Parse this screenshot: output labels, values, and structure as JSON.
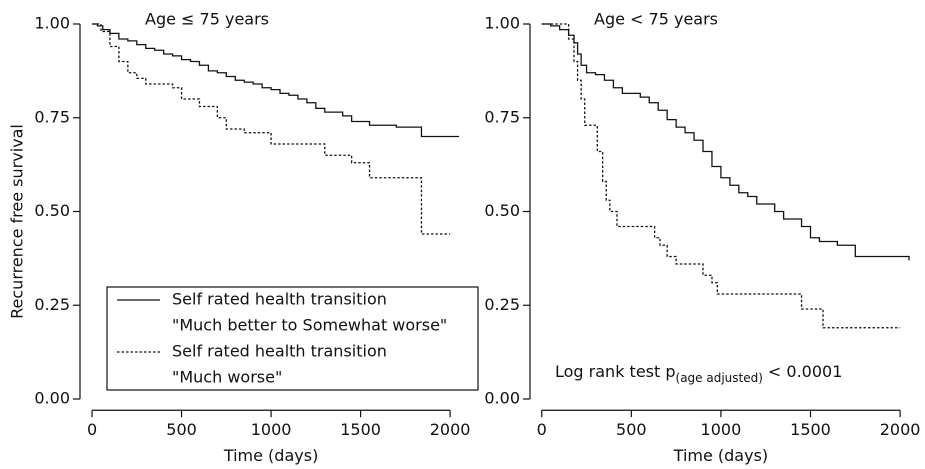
{
  "chart_data": [
    {
      "type": "step",
      "title": "Age ≤ 75 years",
      "xlabel": "Time (days)",
      "ylabel": "Recurrence free survival",
      "xlim": [
        -60,
        2100
      ],
      "ylim": [
        -0.03,
        1.03
      ],
      "xticks": [
        0,
        500,
        1000,
        1500,
        2000
      ],
      "yticks": [
        {
          "value": 0,
          "label": "0.00"
        },
        {
          "value": 0.25,
          "label": "0.25"
        },
        {
          "value": 0.5,
          "label": "0.50"
        },
        {
          "value": 0.75,
          "label": "0.75"
        },
        {
          "value": 1,
          "label": "1.00"
        }
      ],
      "legend": "bottom-left",
      "series": [
        {
          "name": [
            "Self rated health transition",
            "\"Much better to Somewhat worse\""
          ],
          "color": "#111111",
          "linestyle": "solid",
          "x": [
            0,
            30,
            60,
            100,
            150,
            200,
            250,
            300,
            350,
            400,
            450,
            500,
            550,
            600,
            650,
            700,
            750,
            800,
            850,
            900,
            950,
            1000,
            1050,
            1100,
            1150,
            1200,
            1250,
            1300,
            1400,
            1450,
            1550,
            1700,
            1840,
            2050
          ],
          "values": [
            1.0,
            0.995,
            0.985,
            0.975,
            0.96,
            0.955,
            0.945,
            0.935,
            0.93,
            0.92,
            0.915,
            0.905,
            0.9,
            0.89,
            0.875,
            0.87,
            0.86,
            0.85,
            0.845,
            0.84,
            0.83,
            0.825,
            0.815,
            0.81,
            0.8,
            0.79,
            0.775,
            0.765,
            0.755,
            0.74,
            0.73,
            0.725,
            0.7,
            0.7
          ]
        },
        {
          "name": [
            "Self rated health transition",
            "\"Much worse\""
          ],
          "color": "#111111",
          "linestyle": "dotted",
          "x": [
            0,
            50,
            100,
            150,
            200,
            250,
            300,
            450,
            500,
            600,
            700,
            750,
            850,
            1000,
            1300,
            1450,
            1550,
            1840,
            2000
          ],
          "values": [
            1.0,
            0.98,
            0.94,
            0.9,
            0.87,
            0.855,
            0.84,
            0.83,
            0.8,
            0.78,
            0.75,
            0.72,
            0.71,
            0.68,
            0.65,
            0.63,
            0.59,
            0.44,
            0.44
          ]
        }
      ]
    },
    {
      "type": "step",
      "title": "Age < 75 years",
      "xlabel": "Time (days)",
      "xlim": [
        -60,
        2100
      ],
      "ylim": [
        -0.03,
        1.03
      ],
      "xticks": [
        0,
        500,
        1000,
        1500,
        2000
      ],
      "yticks": [
        {
          "value": 0,
          "label": "0.00"
        },
        {
          "value": 0.25,
          "label": "0.25"
        },
        {
          "value": 0.5,
          "label": "0.50"
        },
        {
          "value": 0.75,
          "label": "0.75"
        },
        {
          "value": 1,
          "label": "1.00"
        }
      ],
      "annotation": {
        "text": "Log rank test p",
        "subscript": "(age adjusted)",
        "tail": "< 0.0001"
      },
      "series": [
        {
          "color": "#111111",
          "linestyle": "solid",
          "x": [
            0,
            50,
            100,
            150,
            180,
            200,
            220,
            250,
            300,
            350,
            400,
            450,
            550,
            600,
            650,
            700,
            750,
            800,
            850,
            900,
            950,
            1000,
            1050,
            1100,
            1150,
            1200,
            1300,
            1350,
            1450,
            1500,
            1550,
            1650,
            1750,
            2050
          ],
          "values": [
            1.0,
            0.995,
            0.985,
            0.97,
            0.95,
            0.92,
            0.89,
            0.87,
            0.865,
            0.85,
            0.83,
            0.815,
            0.805,
            0.79,
            0.77,
            0.745,
            0.725,
            0.71,
            0.69,
            0.66,
            0.62,
            0.59,
            0.57,
            0.55,
            0.54,
            0.52,
            0.5,
            0.48,
            0.46,
            0.43,
            0.42,
            0.41,
            0.38,
            0.37
          ]
        },
        {
          "color": "#111111",
          "linestyle": "dotted",
          "x": [
            0,
            150,
            180,
            200,
            220,
            240,
            310,
            340,
            360,
            380,
            420,
            630,
            660,
            700,
            750,
            900,
            950,
            980,
            1450,
            1570,
            2000
          ],
          "values": [
            1.0,
            0.96,
            0.9,
            0.85,
            0.8,
            0.73,
            0.66,
            0.58,
            0.53,
            0.5,
            0.46,
            0.43,
            0.41,
            0.38,
            0.36,
            0.33,
            0.31,
            0.28,
            0.24,
            0.19,
            0.19
          ]
        }
      ]
    }
  ]
}
